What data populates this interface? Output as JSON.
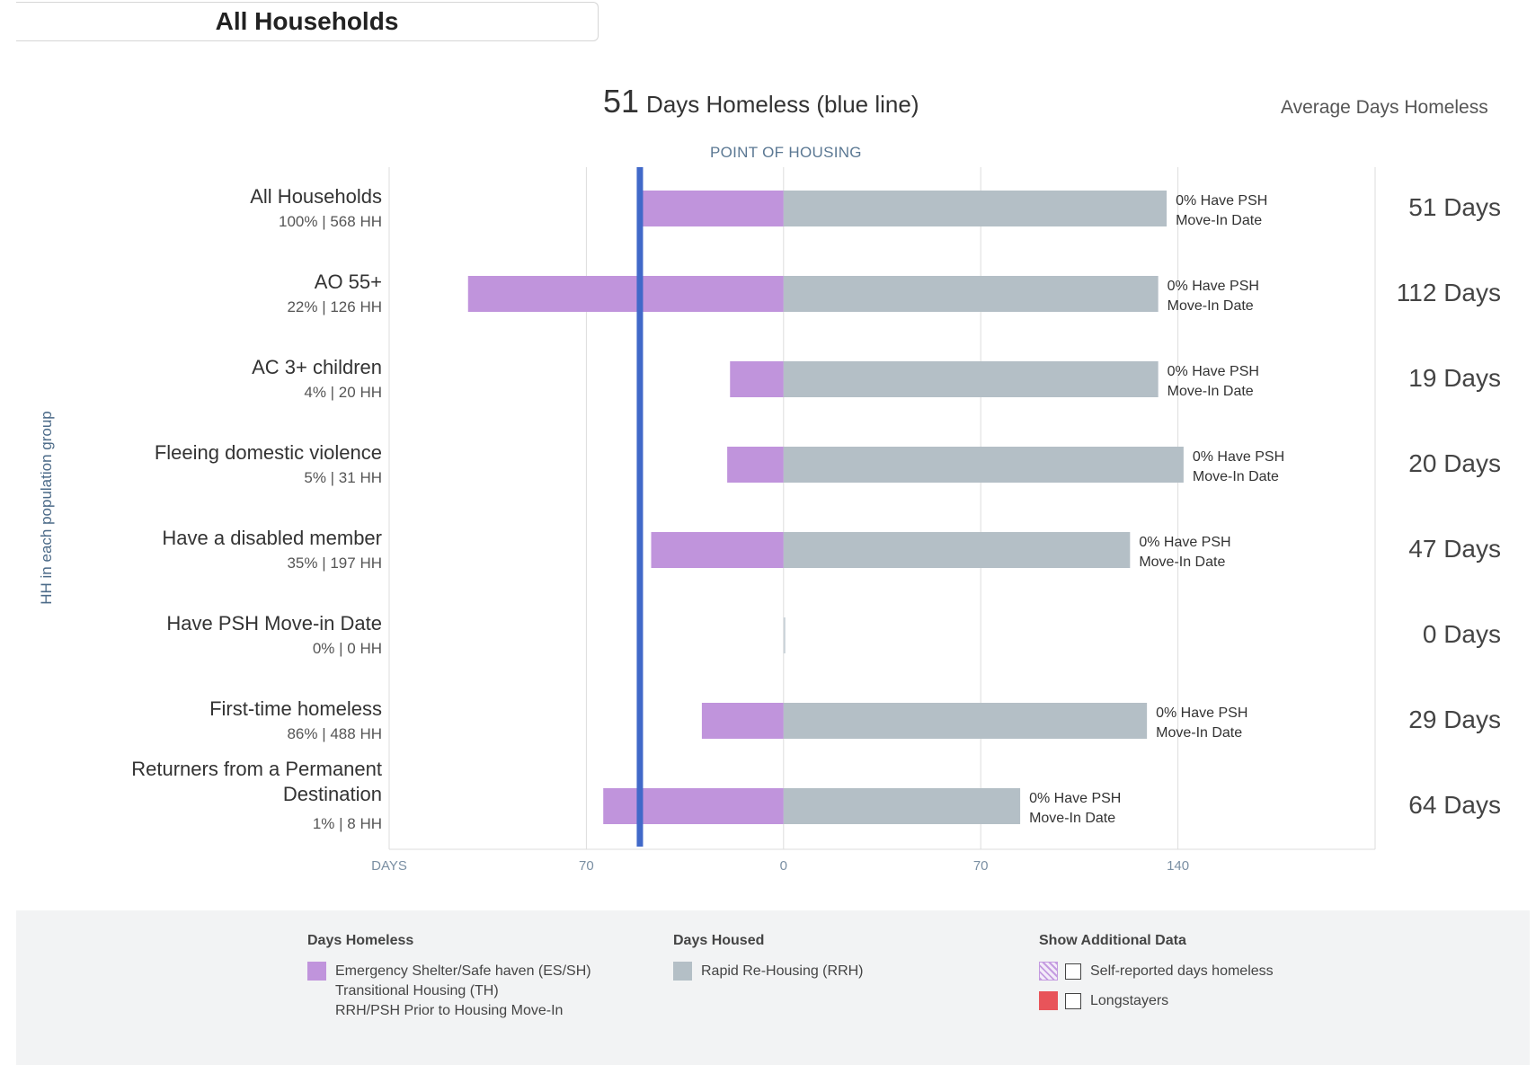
{
  "filter": {
    "label": "All Households"
  },
  "headline": {
    "value": "51",
    "text": "Days Homeless (blue line)"
  },
  "avg_title": "Average Days Homeless",
  "point_of_housing": "POINT OF HOUSING",
  "y_axis_title": "HH in each population group",
  "colors": {
    "homeless": "#c094dc",
    "housed": "#b4bfc6",
    "avg_line": "#4169c9",
    "longstayers": "#e8545a"
  },
  "chart_data": {
    "type": "bar",
    "orientation": "horizontal-diverging",
    "xlabel": "DAYS",
    "xticks": [
      "DAYS",
      "70",
      "0",
      "70",
      "140"
    ],
    "xlim": [
      -140,
      210
    ],
    "reference_line": {
      "label": "51 Days Homeless (blue line)",
      "value": -51
    },
    "rows": [
      {
        "label": "All Households",
        "sub": "100% | 568 HH",
        "homeless": 51,
        "housed": 136,
        "bar_text": [
          "0% Have PSH",
          "Move-In Date"
        ],
        "avg": "51 Days"
      },
      {
        "label": "AO 55+",
        "sub": "22% | 126 HH",
        "homeless": 112,
        "housed": 133,
        "bar_text": [
          "0% Have PSH",
          "Move-In Date"
        ],
        "avg": "112 Days"
      },
      {
        "label": "AC 3+ children",
        "sub": "4% | 20 HH",
        "homeless": 19,
        "housed": 133,
        "bar_text": [
          "0% Have PSH",
          "Move-In Date"
        ],
        "avg": "19 Days"
      },
      {
        "label": "Fleeing domestic violence",
        "sub": "5% | 31 HH",
        "homeless": 20,
        "housed": 142,
        "bar_text": [
          "0% Have PSH",
          "Move-In Date"
        ],
        "avg": "20 Days"
      },
      {
        "label": "Have a disabled member",
        "sub": "35% | 197 HH",
        "homeless": 47,
        "housed": 123,
        "bar_text": [
          "0% Have PSH",
          "Move-In Date"
        ],
        "avg": "47 Days"
      },
      {
        "label": "Have PSH Move-in Date",
        "sub": "0% | 0 HH",
        "homeless": 0,
        "housed": 0,
        "bar_text": [],
        "avg": "0 Days"
      },
      {
        "label": "First-time homeless",
        "sub": "86% | 488 HH",
        "homeless": 29,
        "housed": 129,
        "bar_text": [
          "0% Have PSH",
          "Move-In Date"
        ],
        "avg": "29 Days"
      },
      {
        "label": "Returners from a Permanent Destination",
        "label_lines": [
          "Returners from a Permanent",
          "Destination"
        ],
        "sub": "1% | 8 HH",
        "homeless": 64,
        "housed": 84,
        "bar_text": [
          "0% Have PSH",
          "Move-In Date"
        ],
        "avg": "64 Days"
      }
    ],
    "grid": true
  },
  "legend": {
    "homeless": {
      "title": "Days Homeless",
      "items": [
        "Emergency Shelter/Safe haven (ES/SH)",
        "Transitional Housing (TH)",
        "RRH/PSH Prior to Housing Move-In"
      ]
    },
    "housed": {
      "title": "Days Housed",
      "items": [
        "Rapid Re-Housing (RRH)"
      ]
    },
    "additional": {
      "title": "Show Additional Data",
      "items": [
        "Self-reported days homeless",
        "Longstayers"
      ]
    }
  }
}
